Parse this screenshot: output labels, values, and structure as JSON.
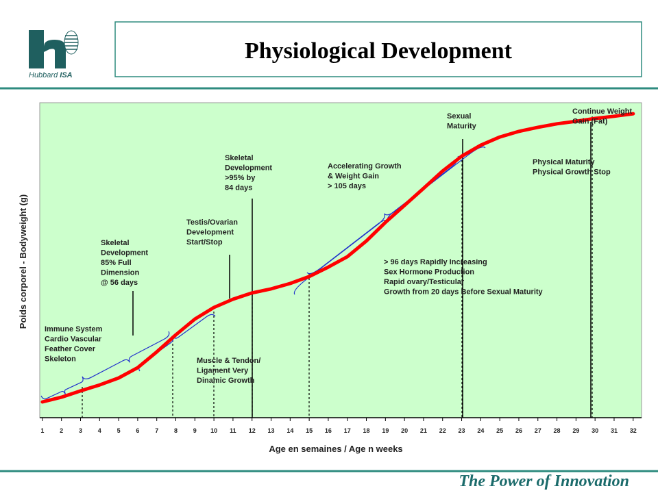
{
  "logo": {
    "brand": "Hubbard",
    "suffix": "ISA"
  },
  "title": "Physiological Development",
  "footer": "The Power of Innovation",
  "chart_data": {
    "type": "line",
    "xlabel": "Age en semaines / Age n weeks",
    "ylabel": "Poids corporel - Bodyweight (g)",
    "x": [
      1,
      2,
      3,
      4,
      5,
      6,
      7,
      8,
      9,
      10,
      11,
      12,
      13,
      14,
      15,
      16,
      17,
      18,
      19,
      20,
      21,
      22,
      23,
      24,
      25,
      26,
      27,
      28,
      29,
      30,
      31,
      32
    ],
    "series": [
      {
        "color": "#ff0000",
        "values": [
          5.0,
          6.5,
          8.5,
          10.4,
          12.6,
          15.9,
          20.9,
          26.3,
          31.3,
          35.0,
          37.6,
          39.6,
          40.9,
          42.6,
          44.8,
          47.8,
          51.1,
          56.1,
          62.0,
          67.4,
          72.8,
          78.3,
          83.0,
          86.5,
          89.1,
          90.9,
          92.2,
          93.3,
          94.1,
          95.0,
          95.7,
          96.5
        ]
      }
    ],
    "xlim": [
      0.86,
      32.44
    ],
    "ylim": [
      0,
      100
    ],
    "xticks": [
      1,
      2,
      3,
      4,
      5,
      6,
      7,
      8,
      9,
      10,
      11,
      12,
      13,
      14,
      15,
      16,
      17,
      18,
      19,
      20,
      21,
      22,
      23,
      24,
      25,
      26,
      27,
      28,
      29,
      30,
      31,
      32
    ],
    "background": "#ccffcc",
    "annotations": [
      {
        "lines": [
          "Immune System",
          "Cardio Vascular",
          "Feather Cover",
          "Skeleton"
        ]
      },
      {
        "lines": [
          "Skeletal",
          "Development",
          "85% Full",
          "Dimension",
          "@ 56 days"
        ]
      },
      {
        "lines": [
          "Testis/Ovarian",
          "Development",
          "Start/Stop"
        ]
      },
      {
        "lines": [
          "Skeletal",
          "Development",
          ">95% by",
          " 84 days"
        ]
      },
      {
        "lines": [
          "Accelerating Growth",
          "& Weight Gain",
          "> 105 days"
        ]
      },
      {
        "lines": [
          "Sexual",
          "Maturity"
        ]
      },
      {
        "lines": [
          "Continue Weight",
          "Gain (Fat)"
        ]
      },
      {
        "lines": [
          "Physical Maturity",
          "Physical Growth Stop"
        ]
      },
      {
        "lines": [
          "> 96 days Rapidly Increasing",
          "Sex Hormone Production",
          "Rapid ovary/Testicular",
          "Growth from 20 days Before Sexual Maturity"
        ]
      },
      {
        "lines": [
          "Muscle & Tendon/",
          "Ligament Very",
          "Dinamic Growth"
        ]
      }
    ]
  }
}
